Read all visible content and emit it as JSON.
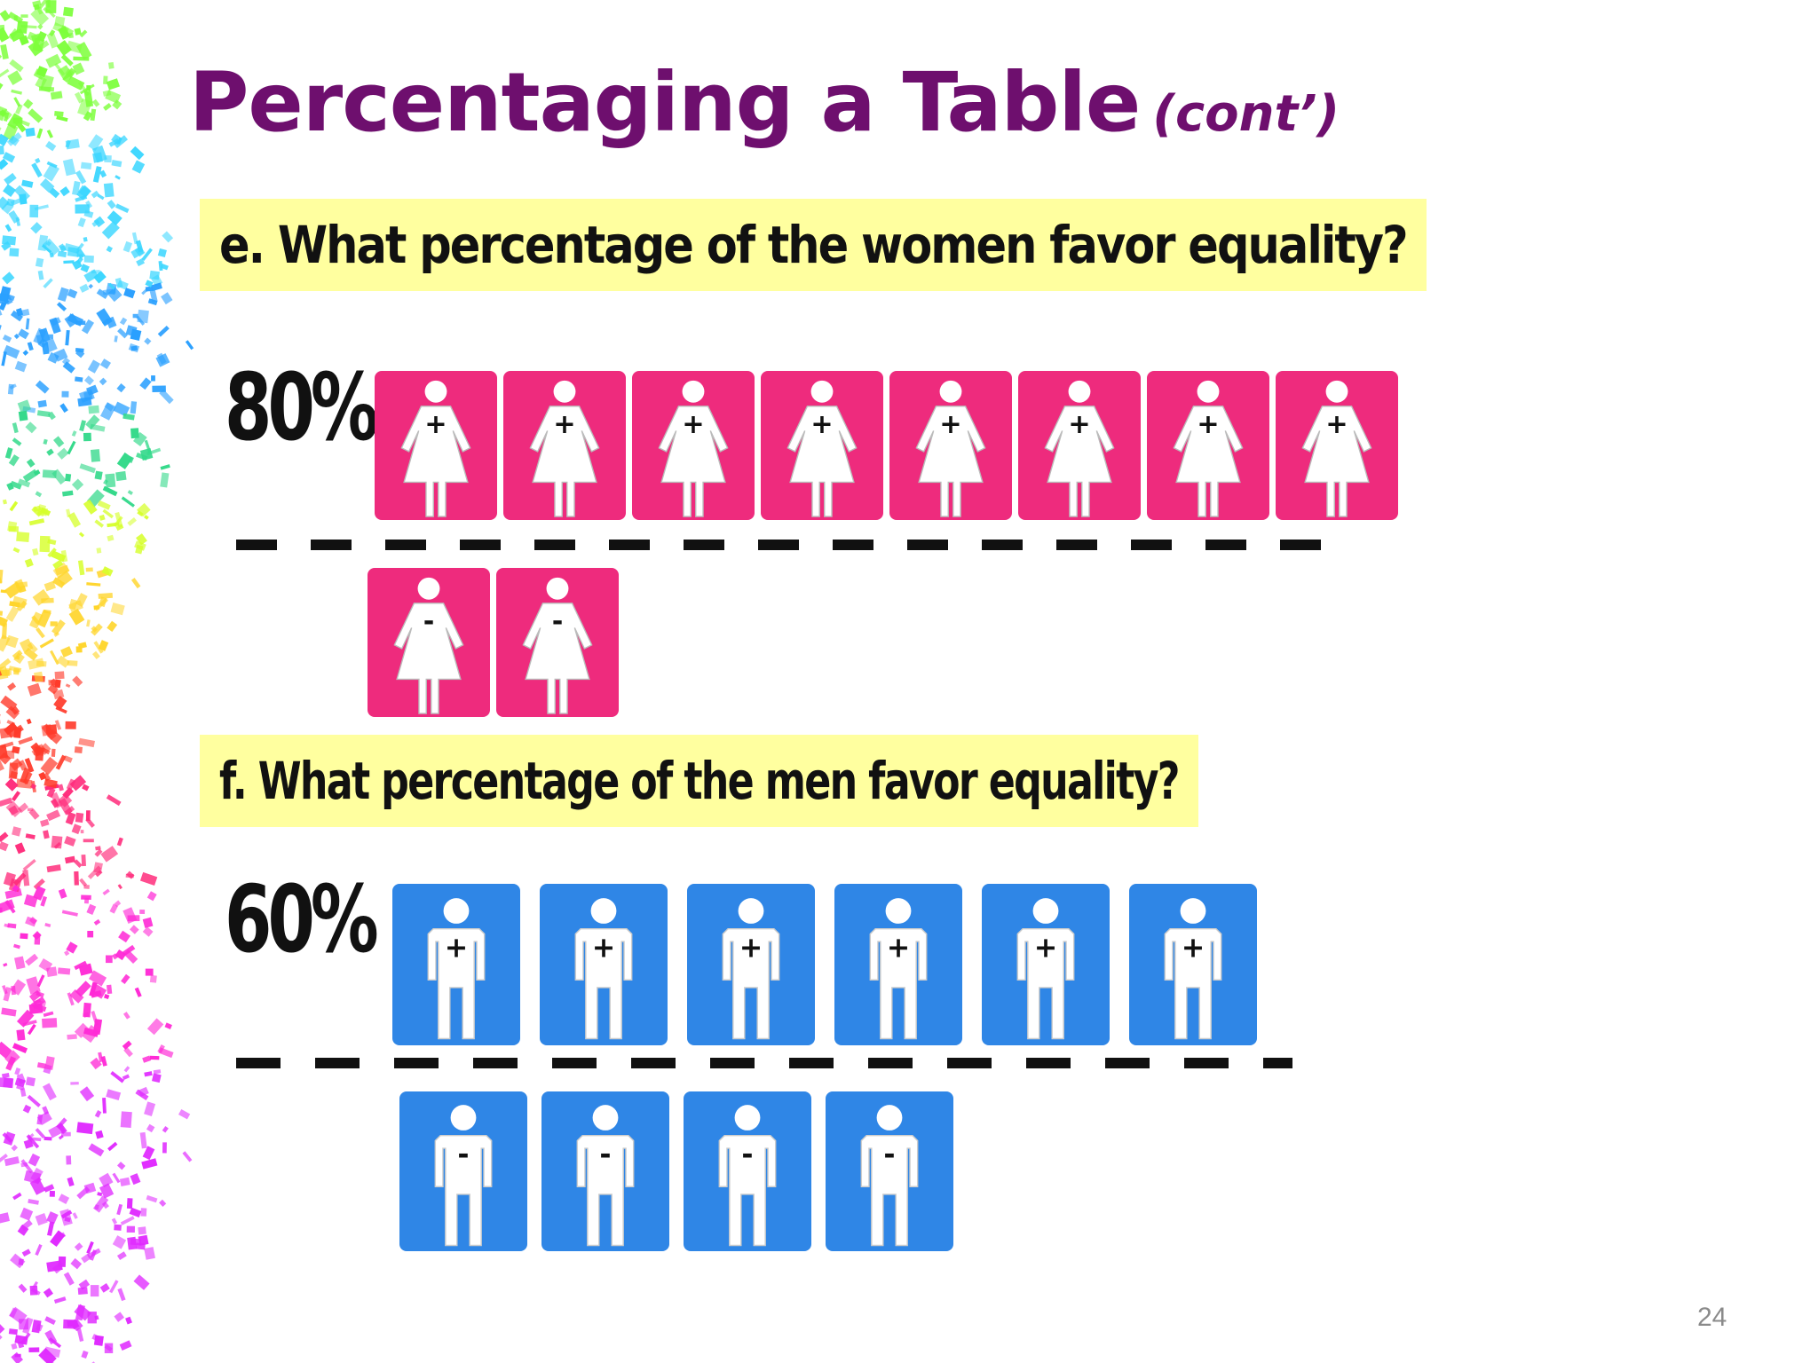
{
  "slide": {
    "title": "Percentaging a Table",
    "title_suffix": "(cont’)",
    "page_number": "24"
  },
  "questions": [
    {
      "label": "e. What percentage of the women favor equality?",
      "percent": "80%",
      "favor_count": 8,
      "oppose_count": 2,
      "favor_symbol": "+",
      "oppose_symbol": "-",
      "color": "#ee2b7d",
      "figure": "woman-icon"
    },
    {
      "label": "f. What percentage of the men favor equality?",
      "percent": "60%",
      "favor_count": 6,
      "oppose_count": 4,
      "favor_symbol": "+",
      "oppose_symbol": "-",
      "color": "#2f86e6",
      "figure": "man-icon"
    }
  ],
  "colors": {
    "title": "#6e0f6e",
    "highlight": "#ffff9f",
    "women": "#ee2b7d",
    "men": "#2f86e6"
  }
}
